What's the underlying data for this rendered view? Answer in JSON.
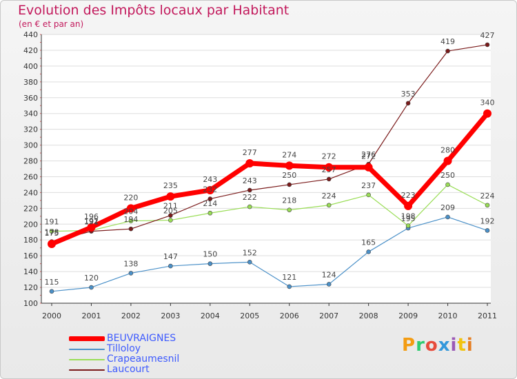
{
  "title": "Evolution des Impôts locaux par Habitant",
  "subtitle": "(en € et par an)",
  "logo_text": "Proxiti",
  "logo_colors": [
    "#f39c12",
    "#2ecc71",
    "#e74c3c",
    "#3498db",
    "#9b59b6",
    "#f1c40f",
    "#e67e22"
  ],
  "chart_data": {
    "type": "line",
    "title": "Evolution des Impôts locaux par Habitant",
    "subtitle": "(en € et par an)",
    "xlabel": "",
    "ylabel": "",
    "x": [
      "2000",
      "2001",
      "2002",
      "2003",
      "2004",
      "2005",
      "2006",
      "2007",
      "2008",
      "2009",
      "2010",
      "2011"
    ],
    "ylim": [
      100,
      440
    ],
    "yticks": [
      100,
      120,
      140,
      160,
      180,
      200,
      220,
      240,
      260,
      280,
      300,
      320,
      340,
      360,
      380,
      400,
      420,
      440
    ],
    "grid": "horizontal",
    "legend_position": "bottom-left",
    "series": [
      {
        "name": "BEUVRAIGNES",
        "color": "#ff0000",
        "values": [
          175,
          196,
          220,
          235,
          243,
          277,
          274,
          272,
          272,
          223,
          280,
          340
        ]
      },
      {
        "name": "Tilloloy",
        "color": "#4a90c8",
        "values": [
          115,
          120,
          138,
          147,
          150,
          152,
          121,
          124,
          165,
          195,
          209,
          192
        ]
      },
      {
        "name": "Crapeaumesnil",
        "color": "#99dd55",
        "values": [
          191,
          192,
          204,
          205,
          214,
          222,
          218,
          224,
          237,
          198,
          250,
          224
        ]
      },
      {
        "name": "Laucourt",
        "color": "#7a1a1a",
        "values": [
          178,
          191,
          194,
          211,
          232,
          243,
          250,
          257,
          276,
          353,
          419,
          427
        ]
      }
    ]
  }
}
